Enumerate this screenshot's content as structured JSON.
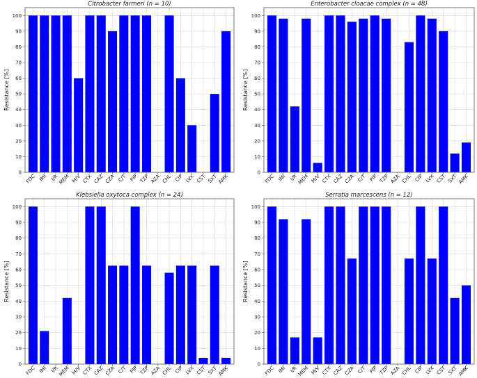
{
  "chart_data": [
    {
      "type": "bar",
      "title": "Citrobacter farmeri (n = 10)",
      "ylabel": "Resistance [%]",
      "ylim": [
        0,
        105
      ],
      "yticks": [
        0,
        10,
        20,
        30,
        40,
        50,
        60,
        70,
        80,
        90,
        100
      ],
      "grid": true,
      "bar_color": "#0000ff",
      "categories": [
        "FDC",
        "IMI",
        "I/R",
        "MEM",
        "M/V",
        "CTX",
        "CAZ",
        "CZA",
        "C/T",
        "PIP",
        "TZP",
        "AZA",
        "CHL",
        "CIP",
        "LVX",
        "CST",
        "SXT",
        "AMK"
      ],
      "values": [
        100,
        100,
        100,
        100,
        60,
        100,
        100,
        90,
        100,
        100,
        100,
        0,
        100,
        60,
        30,
        0,
        50,
        90
      ]
    },
    {
      "type": "bar",
      "title": "Enterobacter cloacae complex (n = 48)",
      "ylabel": "Resistance [%]",
      "ylim": [
        0,
        105
      ],
      "yticks": [
        0,
        10,
        20,
        30,
        40,
        50,
        60,
        70,
        80,
        90,
        100
      ],
      "grid": true,
      "bar_color": "#0000ff",
      "categories": [
        "FDC",
        "IMI",
        "I/R",
        "MEM",
        "M/V",
        "CTX",
        "CAZ",
        "CZA",
        "C/T",
        "PIP",
        "TZP",
        "AZA",
        "CHL",
        "CIP",
        "LVX",
        "CST",
        "SXT",
        "AMK"
      ],
      "values": [
        100,
        98,
        42,
        98,
        6,
        100,
        100,
        96,
        98,
        100,
        98,
        0,
        83,
        100,
        98,
        90,
        12,
        19
      ]
    },
    {
      "type": "bar",
      "title": "Klebsiella oxytoca complex (n = 24)",
      "ylabel": "Resistance [%]",
      "ylim": [
        0,
        105
      ],
      "yticks": [
        0,
        10,
        20,
        30,
        40,
        50,
        60,
        70,
        80,
        90,
        100
      ],
      "grid": true,
      "bar_color": "#0000ff",
      "categories": [
        "FDC",
        "IMI",
        "I/R",
        "MEM",
        "M/V",
        "CTX",
        "CAZ",
        "CZA",
        "C/T",
        "PIP",
        "TZP",
        "AZA",
        "CHL",
        "CIP",
        "LVX",
        "CST",
        "SXT",
        "AMK"
      ],
      "values": [
        100,
        21,
        0,
        42,
        0,
        100,
        100,
        62.5,
        62.5,
        100,
        62.5,
        0,
        58,
        62.5,
        62.5,
        4,
        62.5,
        4
      ]
    },
    {
      "type": "bar",
      "title": "Serratia marcescens (n = 12)",
      "ylabel": "Resistance [%]",
      "ylim": [
        0,
        105
      ],
      "yticks": [
        0,
        10,
        20,
        30,
        40,
        50,
        60,
        70,
        80,
        90,
        100
      ],
      "grid": true,
      "bar_color": "#0000ff",
      "categories": [
        "FDC",
        "IMI",
        "I/R",
        "MEM",
        "M/V",
        "CTX",
        "CAZ",
        "CZA",
        "C/T",
        "PIP",
        "TZP",
        "AZA",
        "CHL",
        "CIP",
        "LVX",
        "CST",
        "SXT",
        "AMK"
      ],
      "values": [
        100,
        92,
        17,
        92,
        17,
        100,
        100,
        67,
        100,
        100,
        100,
        0,
        67,
        100,
        67,
        100,
        42,
        50
      ]
    }
  ]
}
